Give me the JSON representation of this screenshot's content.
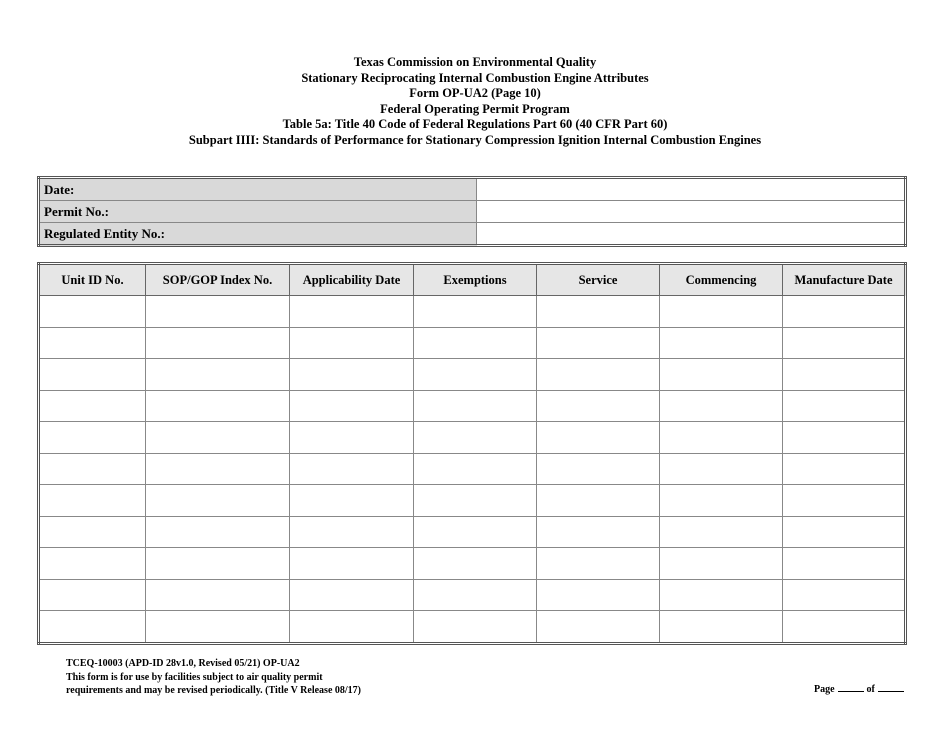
{
  "header": {
    "lines": [
      "Texas Commission on Environmental Quality",
      "Stationary Reciprocating Internal Combustion Engine Attributes",
      "Form OP-UA2 (Page 10)",
      "Federal Operating Permit Program",
      "Table 5a:  Title 40 Code of Federal Regulations Part 60 (40 CFR Part 60)",
      "Subpart IIII:  Standards of Performance for Stationary Compression Ignition Internal Combustion Engines"
    ]
  },
  "info": {
    "rows": [
      {
        "label": "Date:",
        "value": ""
      },
      {
        "label": "Permit No.:",
        "value": ""
      },
      {
        "label": "Regulated Entity No.:",
        "value": ""
      }
    ]
  },
  "table": {
    "columns": [
      "Unit ID No.",
      "SOP/GOP Index No.",
      "Applicability Date",
      "Exemptions",
      "Service",
      "Commencing",
      "Manufacture Date"
    ],
    "row_count": 11
  },
  "footer": {
    "lines": [
      "TCEQ-10003 (APD-ID 28v1.0, Revised 05/21) OP-UA2",
      "This form is for use by facilities subject to air quality permit",
      "requirements and may be revised periodically. (Title V Release 08/17)"
    ],
    "page_label": "Page",
    "of_label": "of"
  }
}
